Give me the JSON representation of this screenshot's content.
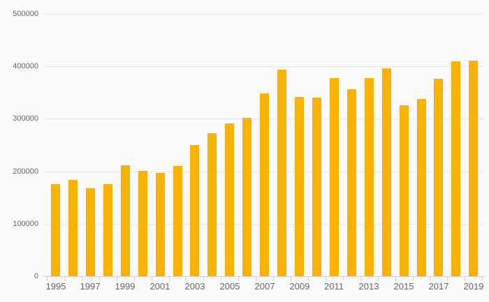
{
  "chart_data": {
    "type": "bar",
    "title": "",
    "xlabel": "",
    "ylabel": "",
    "categories": [
      1995,
      1996,
      1997,
      1998,
      1999,
      2000,
      2001,
      2002,
      2003,
      2004,
      2005,
      2006,
      2007,
      2008,
      2009,
      2010,
      2011,
      2012,
      2013,
      2014,
      2015,
      2016,
      2017,
      2018,
      2019
    ],
    "values": [
      176000,
      183000,
      168000,
      175000,
      212000,
      201000,
      197000,
      210000,
      250000,
      273000,
      291000,
      302000,
      348000,
      393000,
      342000,
      340000,
      378000,
      356000,
      378000,
      396000,
      326000,
      338000,
      376000,
      410000,
      411000
    ],
    "ylim": [
      0,
      500000
    ],
    "ytick_interval": 100000,
    "ytick_labels": [
      "0",
      "100000",
      "200000",
      "300000",
      "400000",
      "500000"
    ],
    "xtick_labels": [
      "1995",
      "1997",
      "1999",
      "2001",
      "2003",
      "2005",
      "2007",
      "2009",
      "2011",
      "2013",
      "2015",
      "2017",
      "2019"
    ],
    "xtick_label_every": 2,
    "grid": true,
    "legend": false
  },
  "colors": {
    "background": "#f9f9f9",
    "bar": "#f9b104",
    "gridline": "#e6e6e6",
    "axis": "#ccd2dc",
    "label_text": "#666666"
  }
}
